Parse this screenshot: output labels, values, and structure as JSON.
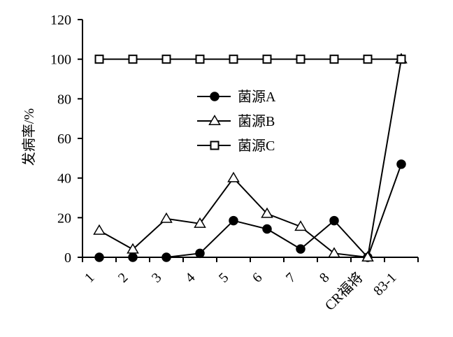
{
  "chart_data": {
    "type": "line",
    "ylabel": "发病率/%",
    "ylim": [
      0,
      120
    ],
    "yticks": [
      0,
      20,
      40,
      60,
      80,
      100,
      120
    ],
    "categories": [
      "1",
      "2",
      "3",
      "4",
      "5",
      "6",
      "7",
      "8",
      "CR福将",
      "83-1"
    ],
    "grid": false,
    "legend_position": "center",
    "series": [
      {
        "name": "菌源A",
        "marker": "filled-circle",
        "values": [
          0,
          0,
          0,
          2,
          18.5,
          14.3,
          4.2,
          18.5,
          0,
          47
        ]
      },
      {
        "name": "菌源B",
        "marker": "open-triangle",
        "values": [
          13.5,
          4,
          19.5,
          17,
          40,
          22,
          15.5,
          2,
          0,
          100
        ]
      },
      {
        "name": "菌源C",
        "marker": "open-square",
        "values": [
          100,
          100,
          100,
          100,
          100,
          100,
          100,
          100,
          100,
          100
        ]
      }
    ]
  }
}
